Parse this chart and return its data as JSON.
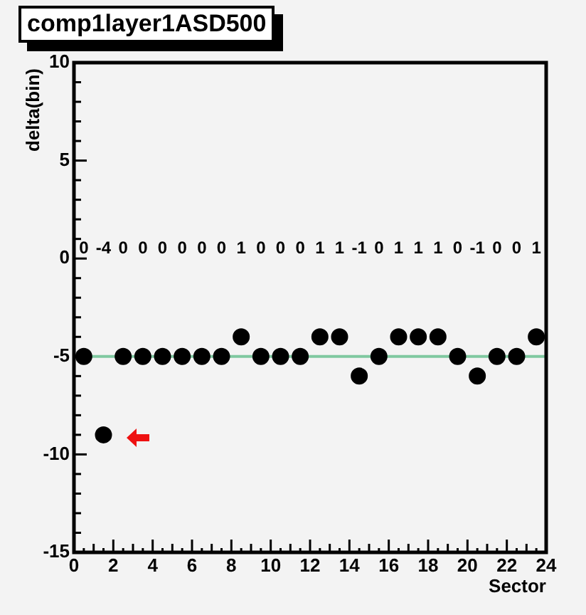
{
  "chart_data": {
    "type": "scatter",
    "title": "comp1layer1ASD500",
    "xlabel": "Sector",
    "ylabel": "delta(bin)",
    "x": [
      0.5,
      1.5,
      2.5,
      3.5,
      4.5,
      5.5,
      6.5,
      7.5,
      8.5,
      9.5,
      10.5,
      11.5,
      12.5,
      13.5,
      14.5,
      15.5,
      16.5,
      17.5,
      18.5,
      19.5,
      20.5,
      21.5,
      22.5,
      23.5
    ],
    "series": [
      {
        "color": "#000000",
        "values": [
          -5,
          -9,
          -5,
          -5,
          -5,
          -5,
          -5,
          -5,
          -4,
          -5,
          -5,
          -5,
          -4,
          -4,
          -6,
          -5,
          -4,
          -4,
          -4,
          -5,
          -6,
          -5,
          -5,
          -4
        ]
      }
    ],
    "marker": "circle",
    "grid": false,
    "xlim": [
      0,
      24
    ],
    "xticks": [
      0,
      2,
      4,
      6,
      8,
      10,
      12,
      14,
      16,
      18,
      20,
      22,
      24
    ],
    "ylim": [
      -15,
      10
    ],
    "yticks": [
      -15,
      -10,
      -5,
      0,
      5,
      10
    ],
    "ref_lines": [
      {
        "axis": "y",
        "value": -5,
        "color": "#7fc8a0"
      }
    ],
    "annotations": [
      "0",
      "-4",
      "0",
      "0",
      "0",
      "0",
      "0",
      "0",
      "1",
      "0",
      "0",
      "0",
      "1",
      "1",
      "-1",
      "0",
      "1",
      "1",
      "1",
      "0",
      "-1",
      "0",
      "0",
      "1"
    ]
  }
}
